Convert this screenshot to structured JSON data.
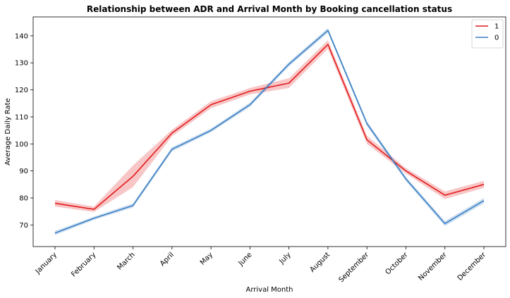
{
  "chart_data": {
    "type": "line",
    "title": "Relationship between ADR and Arrival Month by Booking cancellation status",
    "xlabel": "Arrival Month",
    "ylabel": "Average Daily Rate",
    "categories": [
      "January",
      "February",
      "March",
      "April",
      "May",
      "June",
      "July",
      "August",
      "September",
      "October",
      "November",
      "December"
    ],
    "ylim": [
      62,
      147
    ],
    "yticks": [
      70,
      80,
      90,
      100,
      110,
      120,
      130,
      140
    ],
    "grid": false,
    "legend_position": "top-right",
    "series": [
      {
        "name": "1",
        "color": "#e31a1c",
        "values": [
          78.0,
          75.8,
          88.0,
          104.0,
          114.5,
          119.5,
          122.5,
          136.8,
          101.5,
          90.0,
          81.0,
          85.0
        ],
        "ci_low": [
          76.8,
          74.8,
          84.0,
          102.8,
          113.2,
          118.3,
          120.7,
          135.2,
          100.0,
          89.0,
          79.6,
          83.7
        ],
        "ci_high": [
          79.2,
          76.8,
          92.0,
          105.2,
          115.8,
          120.7,
          124.3,
          138.4,
          103.0,
          91.0,
          82.4,
          86.3
        ]
      },
      {
        "name": "0",
        "color": "#3a7fc4",
        "values": [
          67.0,
          72.5,
          77.2,
          98.0,
          105.0,
          114.5,
          129.5,
          142.0,
          107.5,
          87.0,
          70.5,
          79.0
        ],
        "ci_low": [
          66.2,
          71.9,
          76.4,
          97.2,
          104.3,
          113.7,
          128.7,
          141.1,
          106.6,
          86.2,
          69.6,
          78.0
        ],
        "ci_high": [
          67.8,
          73.1,
          78.0,
          98.8,
          105.7,
          115.3,
          130.3,
          142.9,
          108.4,
          87.8,
          71.4,
          80.0
        ]
      }
    ]
  }
}
